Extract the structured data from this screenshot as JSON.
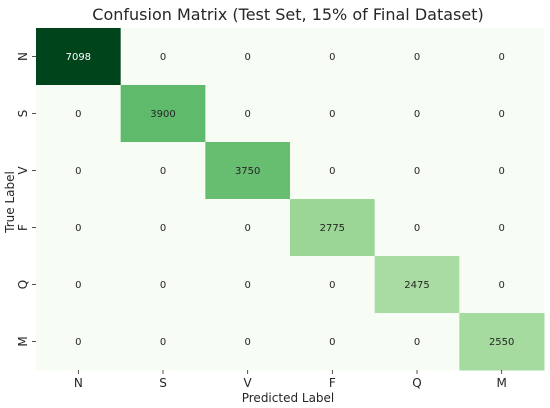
{
  "chart_data": {
    "type": "heatmap",
    "title": "Confusion Matrix (Test Set, 15% of Final Dataset)",
    "xlabel": "Predicted Label",
    "ylabel": "True Label",
    "x_categories": [
      "N",
      "S",
      "V",
      "F",
      "Q",
      "M"
    ],
    "y_categories": [
      "N",
      "S",
      "V",
      "F",
      "Q",
      "M"
    ],
    "values": [
      [
        7098,
        0,
        0,
        0,
        0,
        0
      ],
      [
        0,
        3900,
        0,
        0,
        0,
        0
      ],
      [
        0,
        0,
        3750,
        0,
        0,
        0
      ],
      [
        0,
        0,
        0,
        2775,
        0,
        0
      ],
      [
        0,
        0,
        0,
        0,
        2475,
        0
      ],
      [
        0,
        0,
        0,
        0,
        0,
        2550
      ]
    ],
    "colormap": "Greens",
    "vmin": 0,
    "vmax": 7098,
    "grid": false,
    "legend": "none"
  }
}
